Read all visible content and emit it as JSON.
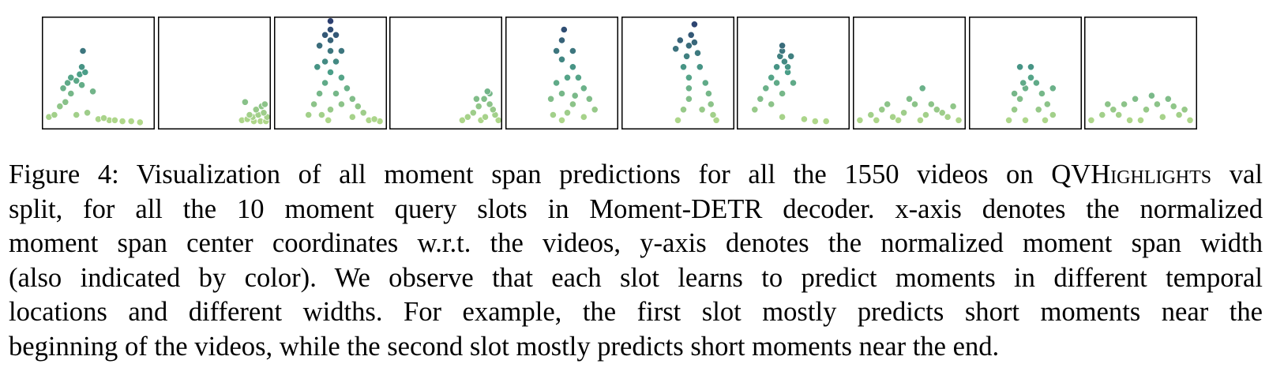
{
  "chart_data": [
    {
      "type": "scatter",
      "slot": 1,
      "xlim": [
        0,
        1
      ],
      "ylim": [
        0,
        1
      ],
      "color_encodes": "span width",
      "points": [
        [
          0.05,
          0.08
        ],
        [
          0.1,
          0.1
        ],
        [
          0.15,
          0.18
        ],
        [
          0.2,
          0.22
        ],
        [
          0.25,
          0.3
        ],
        [
          0.18,
          0.35
        ],
        [
          0.22,
          0.4
        ],
        [
          0.3,
          0.42
        ],
        [
          0.35,
          0.38
        ],
        [
          0.38,
          0.5
        ],
        [
          0.35,
          0.55
        ],
        [
          0.45,
          0.32
        ],
        [
          0.5,
          0.06
        ],
        [
          0.6,
          0.05
        ],
        [
          0.65,
          0.05
        ],
        [
          0.72,
          0.04
        ],
        [
          0.8,
          0.04
        ],
        [
          0.88,
          0.03
        ],
        [
          0.4,
          0.12
        ],
        [
          0.3,
          0.1
        ],
        [
          0.55,
          0.07
        ],
        [
          0.33,
          0.48
        ],
        [
          0.25,
          0.45
        ],
        [
          0.36,
          0.7
        ]
      ]
    },
    {
      "type": "scatter",
      "slot": 2,
      "xlim": [
        0,
        1
      ],
      "ylim": [
        0,
        1
      ],
      "color_encodes": "span width",
      "points": [
        [
          0.75,
          0.05
        ],
        [
          0.8,
          0.06
        ],
        [
          0.85,
          0.08
        ],
        [
          0.9,
          0.1
        ],
        [
          0.95,
          0.12
        ],
        [
          0.98,
          0.08
        ],
        [
          0.93,
          0.18
        ],
        [
          0.88,
          0.15
        ],
        [
          0.82,
          0.1
        ],
        [
          0.96,
          0.2
        ],
        [
          0.78,
          0.22
        ],
        [
          0.92,
          0.04
        ],
        [
          0.86,
          0.04
        ],
        [
          0.97,
          0.04
        ]
      ]
    },
    {
      "type": "scatter",
      "slot": 3,
      "xlim": [
        0,
        1
      ],
      "ylim": [
        0,
        1
      ],
      "color_encodes": "span width",
      "points": [
        [
          0.3,
          0.1
        ],
        [
          0.35,
          0.2
        ],
        [
          0.4,
          0.3
        ],
        [
          0.45,
          0.4
        ],
        [
          0.5,
          0.5
        ],
        [
          0.55,
          0.6
        ],
        [
          0.5,
          0.7
        ],
        [
          0.5,
          0.8
        ],
        [
          0.5,
          0.9
        ],
        [
          0.5,
          0.98
        ],
        [
          0.45,
          0.85
        ],
        [
          0.55,
          0.85
        ],
        [
          0.4,
          0.75
        ],
        [
          0.6,
          0.7
        ],
        [
          0.6,
          0.45
        ],
        [
          0.65,
          0.35
        ],
        [
          0.7,
          0.25
        ],
        [
          0.75,
          0.18
        ],
        [
          0.8,
          0.12
        ],
        [
          0.9,
          0.06
        ],
        [
          0.95,
          0.04
        ],
        [
          0.45,
          0.6
        ],
        [
          0.38,
          0.55
        ],
        [
          0.6,
          0.2
        ],
        [
          0.5,
          0.15
        ],
        [
          0.42,
          0.1
        ],
        [
          0.7,
          0.08
        ],
        [
          0.85,
          0.05
        ],
        [
          0.55,
          0.3
        ],
        [
          0.48,
          0.05
        ]
      ]
    },
    {
      "type": "scatter",
      "slot": 4,
      "xlim": [
        0,
        1
      ],
      "ylim": [
        0,
        1
      ],
      "color_encodes": "span width",
      "points": [
        [
          0.65,
          0.05
        ],
        [
          0.7,
          0.08
        ],
        [
          0.75,
          0.12
        ],
        [
          0.8,
          0.18
        ],
        [
          0.85,
          0.25
        ],
        [
          0.88,
          0.32
        ],
        [
          0.9,
          0.2
        ],
        [
          0.95,
          0.1
        ],
        [
          0.98,
          0.05
        ],
        [
          0.93,
          0.15
        ],
        [
          0.82,
          0.05
        ],
        [
          0.78,
          0.25
        ],
        [
          0.86,
          0.08
        ],
        [
          0.9,
          0.3
        ]
      ]
    },
    {
      "type": "scatter",
      "slot": 5,
      "xlim": [
        0,
        1
      ],
      "ylim": [
        0,
        1
      ],
      "color_encodes": "span width",
      "points": [
        [
          0.5,
          0.05
        ],
        [
          0.55,
          0.12
        ],
        [
          0.6,
          0.2
        ],
        [
          0.5,
          0.3
        ],
        [
          0.45,
          0.4
        ],
        [
          0.55,
          0.45
        ],
        [
          0.6,
          0.55
        ],
        [
          0.5,
          0.62
        ],
        [
          0.45,
          0.7
        ],
        [
          0.6,
          0.7
        ],
        [
          0.5,
          0.8
        ],
        [
          0.7,
          0.35
        ],
        [
          0.75,
          0.25
        ],
        [
          0.8,
          0.15
        ],
        [
          0.7,
          0.08
        ],
        [
          0.65,
          0.45
        ],
        [
          0.4,
          0.25
        ],
        [
          0.52,
          0.9
        ],
        [
          0.62,
          0.28
        ],
        [
          0.42,
          0.1
        ]
      ]
    },
    {
      "type": "scatter",
      "slot": 6,
      "xlim": [
        0,
        1
      ],
      "ylim": [
        0,
        1
      ],
      "color_encodes": "span width",
      "points": [
        [
          0.5,
          0.05
        ],
        [
          0.55,
          0.15
        ],
        [
          0.6,
          0.25
        ],
        [
          0.6,
          0.35
        ],
        [
          0.6,
          0.45
        ],
        [
          0.55,
          0.55
        ],
        [
          0.58,
          0.65
        ],
        [
          0.6,
          0.75
        ],
        [
          0.62,
          0.85
        ],
        [
          0.65,
          0.78
        ],
        [
          0.68,
          0.68
        ],
        [
          0.7,
          0.55
        ],
        [
          0.75,
          0.4
        ],
        [
          0.78,
          0.3
        ],
        [
          0.8,
          0.2
        ],
        [
          0.82,
          0.1
        ],
        [
          0.85,
          0.05
        ],
        [
          0.48,
          0.72
        ],
        [
          0.52,
          0.8
        ],
        [
          0.65,
          0.95
        ],
        [
          0.72,
          0.15
        ]
      ]
    },
    {
      "type": "scatter",
      "slot": 7,
      "xlim": [
        0,
        1
      ],
      "ylim": [
        0,
        1
      ],
      "color_encodes": "span width",
      "points": [
        [
          0.15,
          0.15
        ],
        [
          0.2,
          0.25
        ],
        [
          0.25,
          0.35
        ],
        [
          0.3,
          0.45
        ],
        [
          0.35,
          0.55
        ],
        [
          0.38,
          0.65
        ],
        [
          0.4,
          0.7
        ],
        [
          0.42,
          0.6
        ],
        [
          0.45,
          0.5
        ],
        [
          0.5,
          0.4
        ],
        [
          0.4,
          0.3
        ],
        [
          0.3,
          0.2
        ],
        [
          0.4,
          0.08
        ],
        [
          0.6,
          0.06
        ],
        [
          0.7,
          0.04
        ],
        [
          0.8,
          0.04
        ],
        [
          0.45,
          0.55
        ],
        [
          0.35,
          0.4
        ],
        [
          0.48,
          0.65
        ],
        [
          0.4,
          0.75
        ]
      ]
    },
    {
      "type": "scatter",
      "slot": 8,
      "xlim": [
        0,
        1
      ],
      "ylim": [
        0,
        1
      ],
      "color_encodes": "span width",
      "points": [
        [
          0.05,
          0.05
        ],
        [
          0.15,
          0.1
        ],
        [
          0.25,
          0.15
        ],
        [
          0.35,
          0.08
        ],
        [
          0.45,
          0.12
        ],
        [
          0.55,
          0.2
        ],
        [
          0.65,
          0.1
        ],
        [
          0.75,
          0.15
        ],
        [
          0.85,
          0.08
        ],
        [
          0.95,
          0.05
        ],
        [
          0.5,
          0.25
        ],
        [
          0.2,
          0.05
        ],
        [
          0.6,
          0.05
        ],
        [
          0.3,
          0.2
        ],
        [
          0.7,
          0.2
        ],
        [
          0.8,
          0.12
        ],
        [
          0.9,
          0.18
        ],
        [
          0.4,
          0.05
        ],
        [
          0.62,
          0.35
        ]
      ]
    },
    {
      "type": "scatter",
      "slot": 9,
      "xlim": [
        0,
        1
      ],
      "ylim": [
        0,
        1
      ],
      "color_encodes": "span width",
      "points": [
        [
          0.35,
          0.05
        ],
        [
          0.4,
          0.15
        ],
        [
          0.45,
          0.25
        ],
        [
          0.5,
          0.35
        ],
        [
          0.55,
          0.45
        ],
        [
          0.6,
          0.4
        ],
        [
          0.65,
          0.3
        ],
        [
          0.7,
          0.2
        ],
        [
          0.75,
          0.1
        ],
        [
          0.55,
          0.55
        ],
        [
          0.48,
          0.4
        ],
        [
          0.62,
          0.15
        ],
        [
          0.5,
          0.05
        ],
        [
          0.4,
          0.3
        ],
        [
          0.68,
          0.05
        ],
        [
          0.45,
          0.55
        ],
        [
          0.75,
          0.35
        ]
      ]
    },
    {
      "type": "scatter",
      "slot": 10,
      "xlim": [
        0,
        1
      ],
      "ylim": [
        0,
        1
      ],
      "color_encodes": "span width",
      "points": [
        [
          0.05,
          0.05
        ],
        [
          0.15,
          0.1
        ],
        [
          0.25,
          0.15
        ],
        [
          0.35,
          0.2
        ],
        [
          0.45,
          0.25
        ],
        [
          0.55,
          0.15
        ],
        [
          0.65,
          0.2
        ],
        [
          0.75,
          0.25
        ],
        [
          0.85,
          0.1
        ],
        [
          0.95,
          0.05
        ],
        [
          0.2,
          0.2
        ],
        [
          0.5,
          0.05
        ],
        [
          0.3,
          0.1
        ],
        [
          0.7,
          0.08
        ],
        [
          0.9,
          0.15
        ],
        [
          0.4,
          0.05
        ],
        [
          0.6,
          0.28
        ],
        [
          0.8,
          0.18
        ]
      ]
    }
  ],
  "caption": {
    "lines": [
      [
        "Figure 4: Visualization of all moment span predictions for all the 1550 videos on ",
        {
          "sc": "QVHighlights"
        },
        " val"
      ],
      [
        "split, for all the 10 moment query slots in Moment-DETR decoder. x-axis denotes the normalized"
      ],
      [
        "moment span center coordinates w.r.t. the videos, y-axis denotes the normalized moment span width"
      ],
      [
        "(also indicated by color). We observe that each slot learns to predict moments in different temporal"
      ],
      [
        "locations and different widths. For example, the first slot mostly predicts short moments near the"
      ],
      [
        "beginning of the videos, while the second slot mostly predicts short moments near the end."
      ]
    ]
  },
  "colors": {
    "low": "#b8dc8a",
    "mid": "#4a9e88",
    "high": "#2a3a6e",
    "point_edge": "#ffffff",
    "frame": "#000000"
  }
}
